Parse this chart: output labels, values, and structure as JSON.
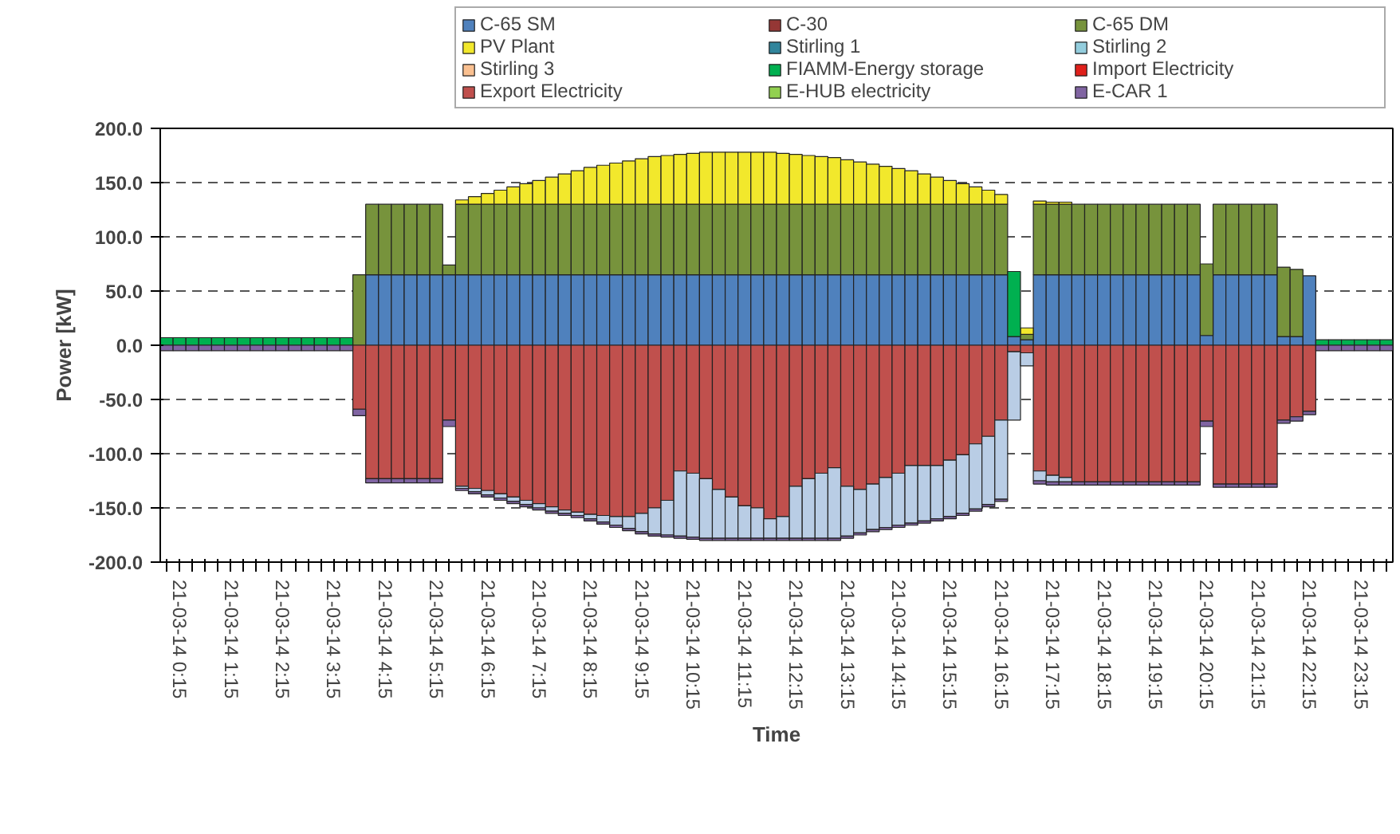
{
  "chart_data": {
    "type": "bar",
    "stacked": true,
    "xlabel": "Time",
    "ylabel": "Power [kW]",
    "categories": [
      null,
      "21-03-14 0:15",
      null,
      null,
      null,
      "21-03-14 1:15",
      null,
      null,
      null,
      "21-03-14 2:15",
      null,
      null,
      null,
      "21-03-14 3:15",
      null,
      null,
      null,
      "21-03-14 4:15",
      null,
      null,
      null,
      "21-03-14 5:15",
      null,
      null,
      null,
      "21-03-14 6:15",
      null,
      null,
      null,
      "21-03-14 7:15",
      null,
      null,
      null,
      "21-03-14 8:15",
      null,
      null,
      null,
      "21-03-14 9:15",
      null,
      null,
      null,
      "21-03-14 10:15",
      null,
      null,
      null,
      "21-03-14 11:15",
      null,
      null,
      null,
      "21-03-14 12:15",
      null,
      null,
      null,
      "21-03-14 13:15",
      null,
      null,
      null,
      "21-03-14 14:15",
      null,
      null,
      null,
      "21-03-14 15:15",
      null,
      null,
      null,
      "21-03-14 16:15",
      null,
      null,
      null,
      "21-03-14 17:15",
      null,
      null,
      null,
      "21-03-14 18:15",
      null,
      null,
      null,
      "21-03-14 19:15",
      null,
      null,
      null,
      "21-03-14 20:15",
      null,
      null,
      null,
      "21-03-14 21:15",
      null,
      null,
      null,
      "21-03-14 22:15",
      null,
      null,
      null,
      "21-03-14 23:15",
      null,
      null
    ],
    "ylim": [
      -200,
      200
    ],
    "yticks": [
      {
        "value": -200,
        "label": "-200.0"
      },
      {
        "value": -150,
        "label": "-150.0"
      },
      {
        "value": -100,
        "label": "-100.0"
      },
      {
        "value": -50,
        "label": "-50.0"
      },
      {
        "value": 0,
        "label": "0.0"
      },
      {
        "value": 50,
        "label": "50.0"
      },
      {
        "value": 100,
        "label": "100.0"
      },
      {
        "value": 150,
        "label": "150.0"
      },
      {
        "value": 200,
        "label": "200.0"
      }
    ],
    "grid": "y",
    "legend": "top",
    "series": [
      {
        "name": "C-65 SM",
        "color": "#4f81bd",
        "values": [
          null,
          null,
          null,
          null,
          null,
          null,
          null,
          null,
          null,
          null,
          null,
          null,
          null,
          null,
          null,
          null,
          65,
          65,
          65,
          65,
          65,
          65,
          65,
          65,
          65,
          65,
          65,
          65,
          65,
          65,
          65,
          65,
          65,
          65,
          65,
          65,
          65,
          65,
          65,
          65,
          65,
          65,
          65,
          65,
          65,
          65,
          65,
          65,
          65,
          65,
          65,
          65,
          65,
          65,
          65,
          65,
          65,
          65,
          65,
          65,
          65,
          65,
          65,
          65,
          65,
          65,
          8,
          5,
          65,
          65,
          65,
          65,
          65,
          65,
          65,
          65,
          65,
          65,
          65,
          65,
          65,
          9,
          65,
          65,
          65,
          65,
          65,
          8,
          8,
          64,
          null,
          null,
          null,
          null,
          null,
          null
        ]
      },
      {
        "name": "C-30",
        "color": "#953735",
        "values": [
          null,
          null,
          null,
          null,
          null,
          null,
          null,
          null,
          null,
          null,
          null,
          null,
          null,
          null,
          null,
          null,
          null,
          null,
          null,
          null,
          null,
          null,
          null,
          null,
          null,
          null,
          null,
          null,
          null,
          null,
          null,
          null,
          null,
          null,
          null,
          null,
          null,
          null,
          null,
          null,
          null,
          null,
          null,
          null,
          null,
          null,
          null,
          null,
          null,
          null,
          null,
          null,
          null,
          null,
          null,
          null,
          null,
          null,
          null,
          null,
          null,
          null,
          null,
          null,
          null,
          null,
          null,
          null,
          null,
          null,
          null,
          null,
          null,
          null,
          null,
          null,
          null,
          null,
          null,
          null,
          null,
          null,
          null,
          null,
          null,
          null,
          null,
          null,
          null,
          null,
          null,
          null,
          null,
          null,
          null,
          null
        ]
      },
      {
        "name": "C-65 DM",
        "color": "#77933c",
        "values": [
          null,
          null,
          null,
          null,
          null,
          null,
          null,
          null,
          null,
          null,
          null,
          null,
          null,
          null,
          null,
          65,
          65,
          65,
          65,
          65,
          65,
          65,
          9,
          65,
          65,
          65,
          65,
          65,
          65,
          65,
          65,
          65,
          65,
          65,
          65,
          65,
          65,
          65,
          65,
          65,
          65,
          65,
          65,
          65,
          65,
          65,
          65,
          65,
          65,
          65,
          65,
          65,
          65,
          65,
          65,
          65,
          65,
          65,
          65,
          65,
          65,
          65,
          65,
          65,
          65,
          65,
          null,
          5,
          65,
          65,
          65,
          65,
          65,
          65,
          65,
          65,
          65,
          65,
          65,
          65,
          65,
          66,
          65,
          65,
          65,
          65,
          65,
          64,
          62,
          null,
          null,
          null,
          null,
          null,
          null,
          null
        ]
      },
      {
        "name": "PV Plant",
        "color": "#f2e82c",
        "values": [
          null,
          null,
          null,
          null,
          null,
          null,
          null,
          null,
          null,
          null,
          null,
          null,
          null,
          null,
          null,
          null,
          null,
          null,
          null,
          null,
          null,
          null,
          null,
          4,
          7,
          10,
          13,
          16,
          19,
          22,
          25,
          28,
          31,
          34,
          36,
          38,
          40,
          42,
          44,
          45,
          46,
          47,
          48,
          48,
          48,
          48,
          48,
          48,
          47,
          46,
          45,
          44,
          43,
          41,
          39,
          37,
          35,
          33,
          31,
          28,
          25,
          22,
          19,
          16,
          13,
          9,
          null,
          6,
          3,
          2,
          2,
          null,
          null,
          null,
          null,
          null,
          null,
          null,
          null,
          null,
          null,
          null,
          null,
          null,
          null,
          null,
          null,
          null,
          null,
          null,
          null,
          null,
          null,
          null,
          null,
          null
        ]
      },
      {
        "name": "Stirling 1",
        "color": "#31859c",
        "values": [
          null,
          null,
          null,
          null,
          null,
          null,
          null,
          null,
          null,
          null,
          null,
          null,
          null,
          null,
          null,
          null,
          null,
          null,
          null,
          null,
          null,
          null,
          null,
          null,
          null,
          null,
          null,
          null,
          null,
          null,
          null,
          null,
          null,
          null,
          null,
          null,
          null,
          null,
          null,
          null,
          null,
          null,
          null,
          null,
          null,
          null,
          null,
          null,
          null,
          null,
          null,
          null,
          null,
          null,
          null,
          null,
          null,
          null,
          null,
          null,
          null,
          null,
          null,
          null,
          null,
          null,
          null,
          null,
          null,
          null,
          null,
          null,
          null,
          null,
          null,
          null,
          null,
          null,
          null,
          null,
          null,
          null,
          null,
          null,
          null,
          null,
          null,
          null,
          null,
          null,
          null,
          null,
          null,
          null,
          null,
          null
        ]
      },
      {
        "name": "Stirling 2",
        "color": "#93cddd",
        "values": [
          null,
          null,
          null,
          null,
          null,
          null,
          null,
          null,
          null,
          null,
          null,
          null,
          null,
          null,
          null,
          null,
          null,
          null,
          null,
          null,
          null,
          null,
          null,
          null,
          null,
          null,
          null,
          null,
          null,
          null,
          null,
          null,
          null,
          null,
          null,
          null,
          null,
          null,
          null,
          null,
          null,
          null,
          null,
          null,
          null,
          null,
          null,
          null,
          null,
          null,
          null,
          null,
          null,
          null,
          null,
          null,
          null,
          null,
          null,
          null,
          null,
          null,
          null,
          null,
          null,
          null,
          null,
          null,
          null,
          null,
          null,
          null,
          null,
          null,
          null,
          null,
          null,
          null,
          null,
          null,
          null,
          null,
          null,
          null,
          null,
          null,
          null,
          null,
          null,
          null,
          null,
          null,
          null,
          null,
          null,
          null
        ]
      },
      {
        "name": "Stirling 3",
        "color": "#fac090",
        "values": [
          null,
          null,
          null,
          null,
          null,
          null,
          null,
          null,
          null,
          null,
          null,
          null,
          null,
          null,
          null,
          null,
          null,
          null,
          null,
          null,
          null,
          null,
          null,
          null,
          null,
          null,
          null,
          null,
          null,
          null,
          null,
          null,
          null,
          null,
          null,
          null,
          null,
          null,
          null,
          null,
          null,
          null,
          null,
          null,
          null,
          null,
          null,
          null,
          null,
          null,
          null,
          null,
          null,
          null,
          null,
          null,
          null,
          null,
          null,
          null,
          null,
          null,
          null,
          null,
          null,
          null,
          null,
          null,
          null,
          null,
          null,
          null,
          null,
          null,
          null,
          null,
          null,
          null,
          null,
          null,
          null,
          null,
          null,
          null,
          null,
          null,
          null,
          null,
          null,
          null,
          null,
          null,
          null,
          null,
          null,
          null
        ]
      },
      {
        "name": "FIAMM-Energy storage",
        "color": "#00b050",
        "values": [
          7,
          7,
          7,
          7,
          7,
          7,
          7,
          7,
          7,
          7,
          7,
          7,
          7,
          7,
          7,
          null,
          null,
          null,
          null,
          null,
          null,
          null,
          null,
          null,
          null,
          null,
          null,
          null,
          null,
          null,
          null,
          null,
          null,
          null,
          null,
          null,
          null,
          null,
          null,
          null,
          null,
          null,
          null,
          null,
          null,
          null,
          null,
          null,
          null,
          null,
          null,
          null,
          null,
          null,
          null,
          null,
          null,
          null,
          null,
          null,
          null,
          null,
          null,
          null,
          null,
          null,
          60,
          null,
          null,
          null,
          null,
          null,
          null,
          null,
          null,
          null,
          null,
          null,
          null,
          null,
          null,
          null,
          null,
          null,
          null,
          null,
          null,
          null,
          null,
          null,
          5,
          5,
          5,
          5,
          5,
          5
        ]
      },
      {
        "name": "Import Electricity",
        "color": "#e0201b",
        "values": [
          null,
          null,
          null,
          null,
          null,
          null,
          null,
          null,
          null,
          null,
          null,
          null,
          null,
          null,
          null,
          null,
          null,
          null,
          null,
          null,
          null,
          null,
          null,
          null,
          null,
          null,
          null,
          null,
          null,
          null,
          null,
          null,
          null,
          null,
          null,
          null,
          null,
          null,
          null,
          null,
          null,
          null,
          null,
          null,
          null,
          null,
          null,
          null,
          null,
          null,
          null,
          null,
          null,
          null,
          null,
          null,
          null,
          null,
          null,
          null,
          null,
          null,
          null,
          null,
          null,
          null,
          null,
          null,
          null,
          null,
          null,
          null,
          null,
          null,
          null,
          null,
          null,
          null,
          null,
          null,
          null,
          null,
          null,
          null,
          null,
          null,
          null,
          null,
          null,
          null,
          null,
          null,
          null,
          null,
          null,
          null
        ]
      },
      {
        "name": "Export Electricity",
        "color": "#c0504d",
        "values": [
          null,
          null,
          null,
          null,
          null,
          null,
          null,
          null,
          null,
          null,
          null,
          null,
          null,
          null,
          null,
          -59,
          -123,
          -123,
          -123,
          -123,
          -123,
          -123,
          -69,
          -130,
          -132,
          -134,
          -137,
          -140,
          -143,
          -146,
          -149,
          -152,
          -154,
          -156,
          -157,
          -158,
          -158,
          -155,
          -150,
          -143,
          -116,
          -118,
          -123,
          -133,
          -140,
          -148,
          -150,
          -160,
          -158,
          -130,
          -123,
          -118,
          -113,
          -130,
          -133,
          -128,
          -122,
          -118,
          -111,
          -111,
          -111,
          -106,
          -101,
          -91,
          -84,
          -69,
          -6,
          -7,
          -116,
          -120,
          -122,
          -126,
          -126,
          -126,
          -126,
          -126,
          -126,
          -126,
          -126,
          -126,
          -126,
          -70,
          -128,
          -128,
          -128,
          -128,
          -128,
          -69,
          -66,
          -61,
          null,
          null,
          null,
          null,
          null,
          null
        ]
      },
      {
        "color": "#b9cde5",
        "values": [
          null,
          null,
          null,
          null,
          null,
          null,
          null,
          null,
          null,
          null,
          null,
          null,
          null,
          null,
          null,
          null,
          null,
          null,
          null,
          null,
          null,
          null,
          null,
          -2,
          -3,
          -4,
          -4,
          -4,
          -4,
          -4,
          -4,
          -3,
          -3,
          -4,
          -6,
          -8,
          -11,
          -17,
          -24,
          -32,
          -60,
          -59,
          -55,
          -45,
          -38,
          -30,
          -28,
          -18,
          -20,
          -48,
          -55,
          -60,
          -65,
          -46,
          -40,
          -42,
          -46,
          -48,
          -53,
          -51,
          -49,
          -52,
          -54,
          -60,
          -63,
          -73,
          -63,
          -12,
          -9,
          -6,
          -4,
          null,
          null,
          null,
          null,
          null,
          null,
          null,
          null,
          null,
          null,
          null,
          null,
          null,
          null,
          null,
          null,
          null,
          null,
          null,
          null,
          null,
          null,
          null,
          null,
          null
        ]
      },
      {
        "name": "E-HUB electricity",
        "color": "#92d050",
        "values": [
          null,
          null,
          null,
          null,
          null,
          null,
          null,
          null,
          null,
          null,
          null,
          null,
          null,
          null,
          null,
          null,
          null,
          null,
          null,
          null,
          null,
          null,
          null,
          null,
          null,
          null,
          null,
          null,
          null,
          null,
          null,
          null,
          null,
          null,
          null,
          null,
          null,
          null,
          null,
          null,
          null,
          null,
          null,
          null,
          null,
          null,
          null,
          null,
          null,
          null,
          null,
          null,
          null,
          null,
          null,
          null,
          null,
          null,
          null,
          null,
          null,
          null,
          null,
          null,
          null,
          null,
          null,
          null,
          null,
          null,
          null,
          null,
          null,
          null,
          null,
          null,
          null,
          null,
          null,
          null,
          null,
          null,
          null,
          null,
          null,
          null,
          null,
          null,
          null,
          null,
          null,
          null,
          null,
          null,
          null,
          null
        ]
      },
      {
        "name": "E-CAR 1",
        "color": "#8064a2",
        "values": [
          -5,
          -5,
          -5,
          -5,
          -5,
          -5,
          -5,
          -5,
          -5,
          -5,
          -5,
          -5,
          -5,
          -5,
          -5,
          -6,
          -4,
          -4,
          -4,
          -4,
          -4,
          -4,
          -6,
          -2,
          -2,
          -2,
          -2,
          -2,
          -2,
          -2,
          -2,
          -2,
          -2,
          -2,
          -2,
          -2,
          -2,
          -2,
          -2,
          -2,
          -2,
          -2,
          -2,
          -2,
          -2,
          -2,
          -2,
          -2,
          -2,
          -2,
          -2,
          -2,
          -2,
          -2,
          -2,
          -2,
          -2,
          -2,
          -2,
          -2,
          -2,
          -2,
          -2,
          -2,
          -2,
          -2,
          null,
          null,
          -3,
          -3,
          -3,
          -3,
          -3,
          -3,
          -3,
          -3,
          -3,
          -3,
          -3,
          -3,
          -3,
          -5,
          -3,
          -3,
          -3,
          -3,
          -3,
          -3,
          -4,
          -3,
          -5,
          -5,
          -5,
          -5,
          -5,
          -5
        ]
      }
    ]
  }
}
